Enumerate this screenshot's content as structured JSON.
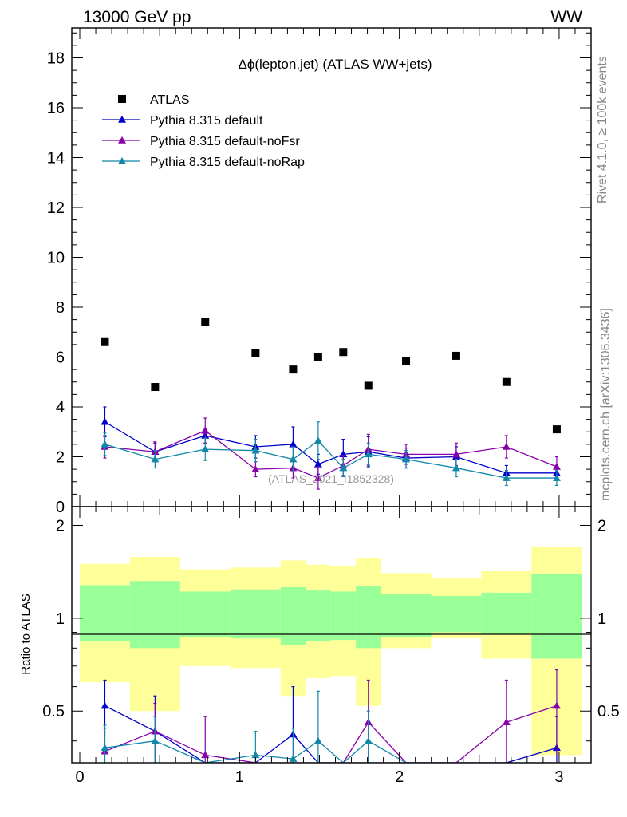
{
  "header": {
    "left": "13000 GeV pp",
    "right": "WW"
  },
  "side_text": {
    "rivet": "Rivet 4.1.0, ≥ 100k events",
    "mcplots": "mcplots.cern.ch [arXiv:1306.3436]"
  },
  "watermark": "(ATLAS_2021_I1852328)",
  "chart_data": {
    "type": "scatter",
    "title": "Δϕ(lepton,jet) (ATLAS WW+jets)",
    "xlabel": "",
    "ylabel": "",
    "xlim": [
      -0.05,
      3.2
    ],
    "ylim": [
      0,
      19.2
    ],
    "ratio_ylabel": "Ratio to ATLAS",
    "ratio_ylim": [
      0.34,
      2.3
    ],
    "x_ticks": [
      {
        "v": 0,
        "label": "0"
      },
      {
        "v": 1,
        "label": "1"
      },
      {
        "v": 2,
        "label": "2"
      },
      {
        "v": 3,
        "label": "3"
      }
    ],
    "y_ticks": [
      {
        "v": 0,
        "label": "0"
      },
      {
        "v": 2,
        "label": "2"
      },
      {
        "v": 4,
        "label": "4"
      },
      {
        "v": 6,
        "label": "6"
      },
      {
        "v": 8,
        "label": "8"
      },
      {
        "v": 10,
        "label": "10"
      },
      {
        "v": 12,
        "label": "12"
      },
      {
        "v": 14,
        "label": "14"
      },
      {
        "v": 16,
        "label": "16"
      },
      {
        "v": 18,
        "label": "18"
      }
    ],
    "ratio_y_ticks": [
      {
        "v": 0.5,
        "label": "0.5"
      },
      {
        "v": 1,
        "label": "1"
      },
      {
        "v": 2,
        "label": "2"
      }
    ],
    "bins": [
      [
        0.0,
        0.314
      ],
      [
        0.314,
        0.628
      ],
      [
        0.628,
        0.942
      ],
      [
        0.942,
        1.257
      ],
      [
        1.257,
        1.414
      ],
      [
        1.414,
        1.571
      ],
      [
        1.571,
        1.728
      ],
      [
        1.728,
        1.885
      ],
      [
        1.885,
        2.199
      ],
      [
        2.199,
        2.513
      ],
      [
        2.513,
        2.827
      ],
      [
        2.827,
        3.142
      ]
    ],
    "x": [
      0.157,
      0.471,
      0.785,
      1.1,
      1.335,
      1.492,
      1.649,
      1.806,
      2.042,
      2.356,
      2.67,
      2.985
    ],
    "series": [
      {
        "name": "ATLAS",
        "color": "#000000",
        "marker": "square",
        "values": [
          6.6,
          4.8,
          7.4,
          6.15,
          5.5,
          6.0,
          6.2,
          4.85,
          5.85,
          6.05,
          5.0,
          3.1
        ]
      },
      {
        "name": "Pythia 8.315 default",
        "color": "#0000cc",
        "marker": "triangle",
        "values": [
          3.4,
          2.2,
          2.85,
          2.4,
          2.5,
          1.7,
          2.1,
          2.2,
          1.95,
          2.0,
          1.35,
          1.35
        ],
        "errors": [
          0.6,
          0.35,
          0.3,
          0.45,
          0.7,
          0.4,
          0.6,
          0.6,
          0.4,
          0.4,
          0.3,
          0.3
        ],
        "ratio": [
          0.52,
          0.43,
          0.3,
          0.3,
          0.42,
          0.2,
          0.2,
          0.2,
          0.2,
          0.2,
          0.2,
          0.38
        ],
        "ratio_errors": [
          0.11,
          0.13,
          0.05,
          0.05,
          0.18,
          0.05,
          0.05,
          0.05,
          0.05,
          0.05,
          0.05,
          0.1
        ]
      },
      {
        "name": "Pythia 8.315 default-noFsr",
        "color": "#8800aa",
        "marker": "triangle",
        "values": [
          2.4,
          2.2,
          3.05,
          1.5,
          1.55,
          1.15,
          1.65,
          2.3,
          2.1,
          2.1,
          2.4,
          1.6
        ],
        "errors": [
          0.45,
          0.4,
          0.5,
          0.3,
          0.4,
          0.45,
          0.4,
          0.6,
          0.4,
          0.45,
          0.45,
          0.4
        ],
        "ratio": [
          0.37,
          0.43,
          0.36,
          0.25,
          0.28,
          0.2,
          0.26,
          0.46,
          0.2,
          0.2,
          0.46,
          0.52
        ],
        "ratio_errors": [
          0.07,
          0.1,
          0.12,
          0.05,
          0.05,
          0.05,
          0.05,
          0.17,
          0.05,
          0.05,
          0.17,
          0.16
        ]
      },
      {
        "name": "Pythia 8.315 default-noRap",
        "color": "#1188aa",
        "marker": "triangle",
        "values": [
          2.5,
          1.9,
          2.3,
          2.25,
          1.9,
          2.65,
          1.55,
          2.1,
          1.9,
          1.55,
          1.15,
          1.15
        ],
        "errors": [
          0.45,
          0.35,
          0.45,
          0.45,
          0.5,
          0.75,
          0.35,
          0.45,
          0.35,
          0.35,
          0.3,
          0.3
        ],
        "ratio": [
          0.38,
          0.4,
          0.31,
          0.36,
          0.35,
          0.4,
          0.25,
          0.4,
          0.2,
          0.2,
          0.2,
          0.2
        ],
        "ratio_errors": [
          0.07,
          0.08,
          0.06,
          0.07,
          0.09,
          0.18,
          0.05,
          0.1,
          0.05,
          0.05,
          0.05,
          0.05
        ]
      }
    ],
    "ratio_bands": {
      "green_low": [
        0.84,
        0.8,
        0.87,
        0.86,
        0.82,
        0.84,
        0.85,
        0.8,
        0.87,
        0.9,
        0.89,
        0.74
      ],
      "green_high": [
        1.28,
        1.32,
        1.22,
        1.24,
        1.26,
        1.23,
        1.22,
        1.27,
        1.2,
        1.18,
        1.21,
        1.39
      ],
      "yellow_low": [
        0.62,
        0.5,
        0.7,
        0.69,
        0.56,
        0.64,
        0.65,
        0.52,
        0.8,
        0.86,
        0.74,
        0.36
      ],
      "yellow_high": [
        1.5,
        1.58,
        1.44,
        1.46,
        1.54,
        1.49,
        1.48,
        1.57,
        1.4,
        1.35,
        1.42,
        1.7
      ]
    }
  }
}
